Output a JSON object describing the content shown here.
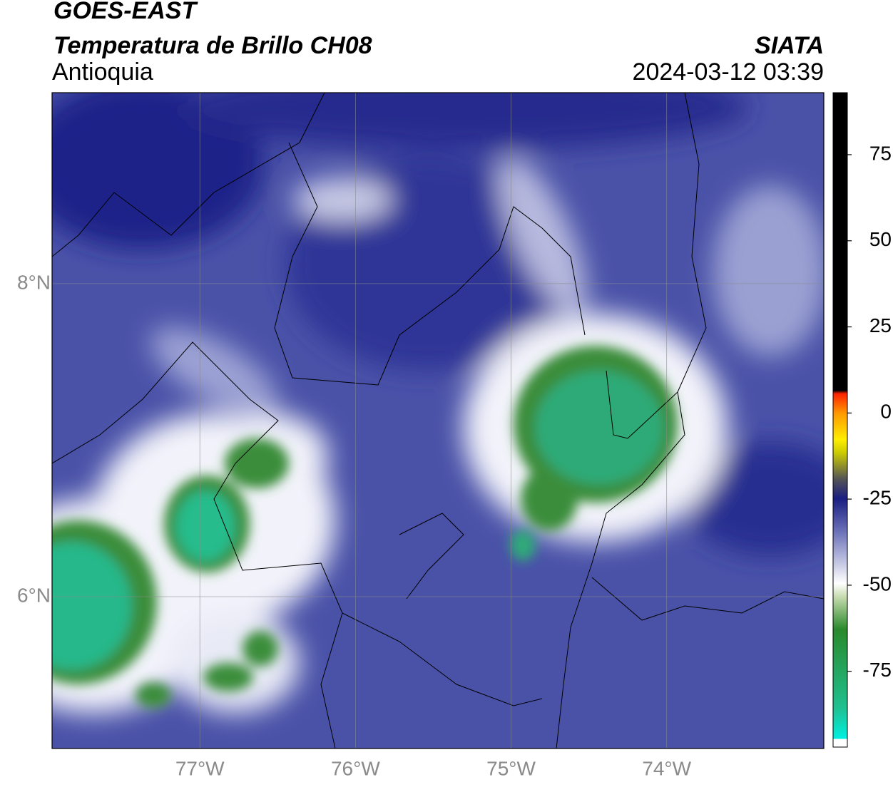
{
  "header": {
    "satellite": "GOES-EAST",
    "product": "Temperatura de Brillo CH08",
    "region": "Antioquia",
    "source": "SIATA",
    "timestamp": "2024-03-12 03:39"
  },
  "map": {
    "lon_range": [
      -77.95,
      -72.99
    ],
    "lat_range": [
      5.03,
      9.22
    ],
    "lon_ticks": [
      {
        "value": -77,
        "label": "77°W"
      },
      {
        "value": -76,
        "label": "76°W"
      },
      {
        "value": -75,
        "label": "75°W"
      },
      {
        "value": -74,
        "label": "74°W"
      }
    ],
    "lat_ticks": [
      {
        "value": 8,
        "label": "8°N"
      },
      {
        "value": 6,
        "label": "6°N"
      }
    ]
  },
  "colorbar": {
    "range": [
      -97,
      93
    ],
    "ticks": [
      75,
      50,
      25,
      0,
      -25,
      -50,
      -75
    ]
  }
}
